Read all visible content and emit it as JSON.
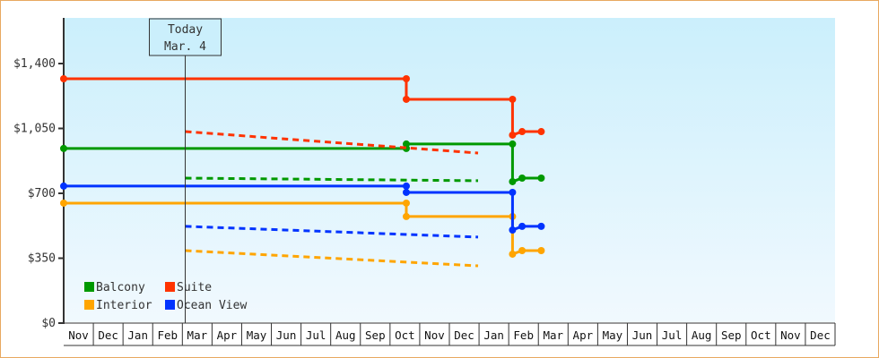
{
  "chart_data": {
    "type": "line",
    "title": "",
    "xlabel": "",
    "ylabel": "",
    "ylim": [
      0,
      1750
    ],
    "y_ticks": [
      "$0",
      "$350",
      "$700",
      "$1,050",
      "$1,400"
    ],
    "y_tick_values": [
      0,
      350,
      700,
      1050,
      1400
    ],
    "x_ticks": [
      "Nov",
      "Dec",
      "Jan",
      "Feb",
      "Mar",
      "Apr",
      "May",
      "Jun",
      "Jul",
      "Aug",
      "Sep",
      "Oct",
      "Nov",
      "Dec",
      "Jan",
      "Feb",
      "Mar",
      "Apr",
      "May",
      "Jun",
      "Jul",
      "Aug",
      "Sep",
      "Oct",
      "Nov",
      "Dec"
    ],
    "grid": false,
    "legend_position": "bottom-left",
    "today": {
      "line1": "Today",
      "line2": "Mar. 4",
      "date": "Mar 4"
    },
    "series": [
      {
        "name": "Balcony",
        "color": "#009900",
        "history": [
          [
            "Nov 1",
            942
          ],
          [
            "Oct 18",
            942
          ],
          [
            "Oct 18",
            966
          ],
          [
            "Feb 5",
            966
          ],
          [
            "Feb 5",
            763
          ],
          [
            "Feb 15",
            782
          ],
          [
            "Mar 4",
            782
          ]
        ],
        "forecast": [
          [
            "Mar 4",
            782
          ],
          [
            "Dec 31",
            768
          ]
        ]
      },
      {
        "name": "Suite",
        "color": "#ff3300",
        "history": [
          [
            "Nov 1",
            1318
          ],
          [
            "Oct 18",
            1318
          ],
          [
            "Oct 18",
            1207
          ],
          [
            "Feb 5",
            1207
          ],
          [
            "Feb 5",
            1014
          ],
          [
            "Feb 15",
            1033
          ],
          [
            "Mar 4",
            1033
          ]
        ],
        "forecast": [
          [
            "Mar 4",
            1033
          ],
          [
            "Dec 31",
            917
          ]
        ]
      },
      {
        "name": "Interior",
        "color": "#ffa500",
        "history": [
          [
            "Nov 1",
            647
          ],
          [
            "Oct 18",
            647
          ],
          [
            "Oct 18",
            575
          ],
          [
            "Feb 5",
            575
          ],
          [
            "Feb 5",
            372
          ],
          [
            "Feb 15",
            391
          ],
          [
            "Mar 4",
            391
          ]
        ],
        "forecast": [
          [
            "Mar 4",
            391
          ],
          [
            "Dec 31",
            309
          ]
        ]
      },
      {
        "name": "Ocean View",
        "color": "#0033ff",
        "history": [
          [
            "Nov 1",
            739
          ],
          [
            "Oct 18",
            739
          ],
          [
            "Oct 18",
            705
          ],
          [
            "Feb 5",
            705
          ],
          [
            "Feb 5",
            502
          ],
          [
            "Feb 15",
            522
          ],
          [
            "Mar 4",
            522
          ]
        ],
        "forecast": [
          [
            "Mar 4",
            522
          ],
          [
            "Dec 31",
            464
          ]
        ]
      }
    ]
  }
}
